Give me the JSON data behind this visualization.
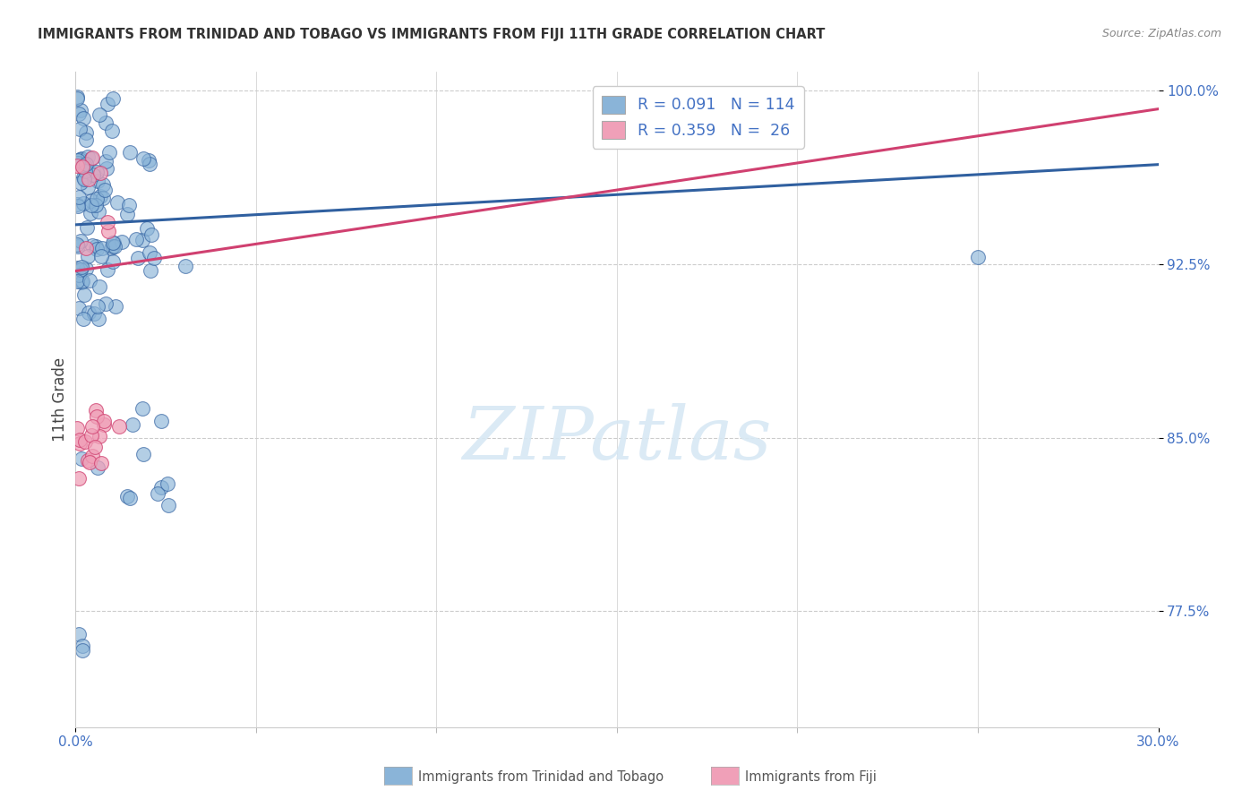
{
  "title": "IMMIGRANTS FROM TRINIDAD AND TOBAGO VS IMMIGRANTS FROM FIJI 11TH GRADE CORRELATION CHART",
  "source": "Source: ZipAtlas.com",
  "ylabel": "11th Grade",
  "xmin": 0.0,
  "xmax": 0.3,
  "ymin": 0.725,
  "ymax": 1.008,
  "ytick_vals": [
    1.0,
    0.925,
    0.85,
    0.775
  ],
  "ytick_labels": [
    "100.0%",
    "92.5%",
    "85.0%",
    "77.5%"
  ],
  "xtick_vals": [
    0.0,
    0.3
  ],
  "xtick_labels": [
    "0.0%",
    "30.0%"
  ],
  "blue_R": 0.091,
  "blue_N": 114,
  "pink_R": 0.359,
  "pink_N": 26,
  "blue_line_x0": 0.0,
  "blue_line_y0": 0.942,
  "blue_line_x1": 0.3,
  "blue_line_y1": 0.968,
  "pink_line_x0": 0.0,
  "pink_line_y0": 0.922,
  "pink_line_x1": 0.3,
  "pink_line_y1": 0.992,
  "blue_scatter_color": "#8ab4d8",
  "blue_edge_color": "#3060a0",
  "blue_line_color": "#3060a0",
  "pink_scatter_color": "#f0a0b8",
  "pink_edge_color": "#d04070",
  "pink_line_color": "#d04070",
  "grid_color": "#cccccc",
  "title_color": "#333333",
  "axis_color": "#4472c4",
  "watermark_color": "#d8e8f4",
  "watermark_text": "ZIPatlas",
  "legend_label_blue": "Immigrants from Trinidad and Tobago",
  "legend_label_pink": "Immigrants from Fiji",
  "background_color": "#ffffff"
}
